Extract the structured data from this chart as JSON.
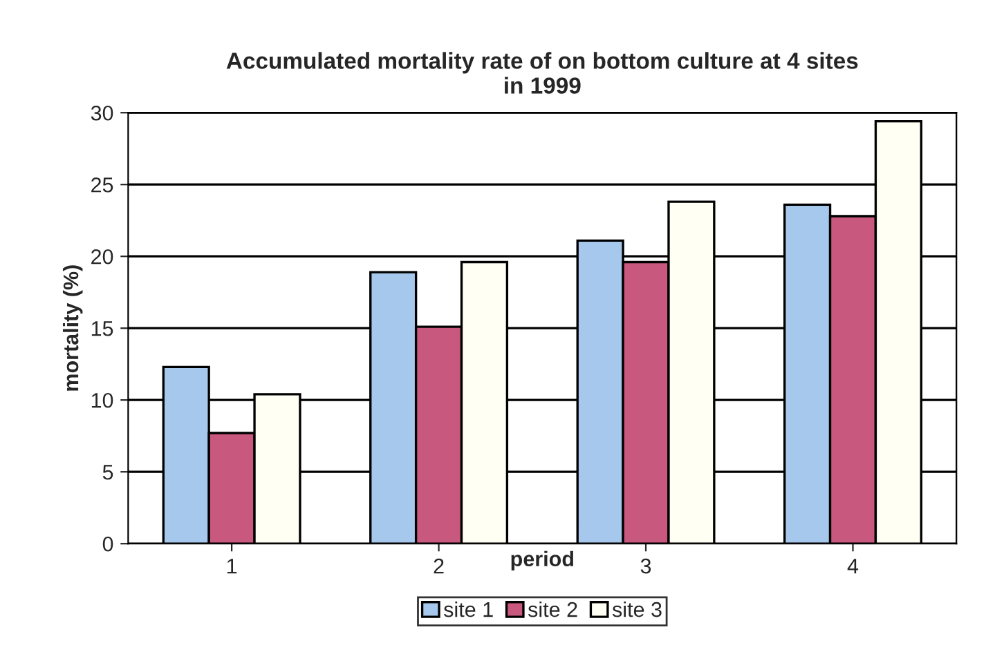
{
  "chart_data": {
    "type": "bar",
    "title": "Accumulated mortality rate of on bottom culture at 4 sites\nin 1999",
    "xlabel": "period",
    "ylabel": "mortality (%)",
    "categories": [
      "1",
      "2",
      "3",
      "4"
    ],
    "series": [
      {
        "name": "site 1",
        "color": "#a6c8ec",
        "values": [
          12.3,
          18.9,
          21.1,
          23.6
        ]
      },
      {
        "name": "site 2",
        "color": "#c9587e",
        "values": [
          7.7,
          15.1,
          19.6,
          22.8
        ]
      },
      {
        "name": "site 3",
        "color": "#fffff4",
        "values": [
          10.4,
          19.6,
          23.8,
          29.4
        ]
      }
    ],
    "ylim": [
      0,
      30
    ],
    "yticks": [
      0,
      5,
      10,
      15,
      20,
      25,
      30
    ],
    "grid": "y",
    "legend": "bottom"
  }
}
